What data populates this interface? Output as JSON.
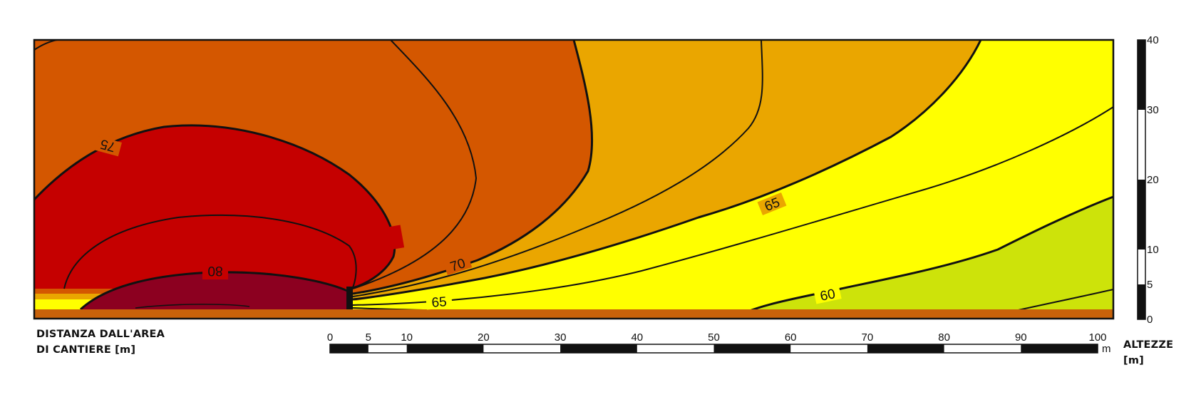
{
  "distance_label": {
    "line1": "DISTANZA DALL'AREA",
    "line2": "DI CANTIERE [m]"
  },
  "height_label": {
    "line1": "ALTEZZE",
    "line2": "[m]"
  },
  "scale_bar": {
    "unit": "m",
    "ticks": [
      {
        "value": 0,
        "label": "0"
      },
      {
        "value": 5,
        "label": "5"
      },
      {
        "value": 10,
        "label": "10"
      },
      {
        "value": 20,
        "label": "20"
      },
      {
        "value": 30,
        "label": "30"
      },
      {
        "value": 40,
        "label": "40"
      },
      {
        "value": 50,
        "label": "50"
      },
      {
        "value": 60,
        "label": "60"
      },
      {
        "value": 70,
        "label": "70"
      },
      {
        "value": 80,
        "label": "80"
      },
      {
        "value": 90,
        "label": "90"
      },
      {
        "value": 100,
        "label": "100"
      }
    ]
  },
  "height_bar": {
    "ticks": [
      {
        "value": 0,
        "label": "0"
      },
      {
        "value": 5,
        "label": "5"
      },
      {
        "value": 10,
        "label": "10"
      },
      {
        "value": 20,
        "label": "20"
      },
      {
        "value": 30,
        "label": "30"
      },
      {
        "value": 40,
        "label": "40"
      }
    ]
  },
  "contours": [
    {
      "id": "c75a",
      "label": "75"
    },
    {
      "id": "c75b",
      "label": "75"
    },
    {
      "id": "c80",
      "label": "80"
    },
    {
      "id": "c70",
      "label": "70"
    },
    {
      "id": "c65a",
      "label": "65"
    },
    {
      "id": "c65b",
      "label": "65"
    },
    {
      "id": "c60",
      "label": "60"
    }
  ],
  "colors": {
    "level_lt_57": "#cde30a",
    "level_57_60": "#f9f700",
    "level_60_65": "#ffff00",
    "level_65_70": "#eaa600",
    "level_70_75": "#d45700",
    "level_75_80": "#c50000",
    "level_gt_80": "#8c0020",
    "ground": "#c8620a"
  }
}
